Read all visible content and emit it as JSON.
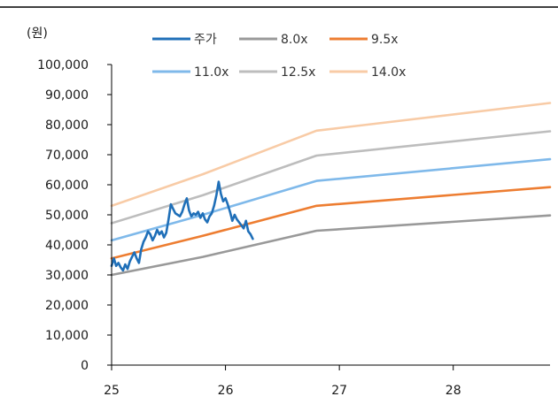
{
  "chart_data": {
    "type": "line",
    "unit_label": "(원)",
    "ylim": [
      0,
      100000
    ],
    "y_ticks": [
      "100,000",
      "90,000",
      "80,000",
      "70,000",
      "60,000",
      "50,000",
      "40,000",
      "30,000",
      "20,000",
      "10,000",
      "0"
    ],
    "y_tick_values": [
      100000,
      90000,
      80000,
      70000,
      60000,
      50000,
      40000,
      30000,
      20000,
      10000,
      0
    ],
    "xlim": [
      25,
      28.85
    ],
    "x_ticks": [
      "25",
      "26",
      "27",
      "28"
    ],
    "x_tick_values": [
      25,
      26,
      27,
      28
    ],
    "grid": false,
    "legend": "top",
    "series": [
      {
        "name": "주가",
        "color": "#1f6fb8",
        "width": 2.6,
        "x": [
          25.0,
          25.02,
          25.04,
          25.06,
          25.08,
          25.1,
          25.12,
          25.14,
          25.16,
          25.18,
          25.2,
          25.22,
          25.24,
          25.26,
          25.28,
          25.3,
          25.32,
          25.34,
          25.36,
          25.38,
          25.4,
          25.42,
          25.44,
          25.46,
          25.48,
          25.5,
          25.52,
          25.54,
          25.56,
          25.58,
          25.6,
          25.62,
          25.64,
          25.66,
          25.68,
          25.7,
          25.72,
          25.74,
          25.76,
          25.78,
          25.8,
          25.82,
          25.84,
          25.86,
          25.88,
          25.9,
          25.92,
          25.94,
          25.96,
          25.98,
          26.0,
          26.02,
          26.04,
          26.06,
          26.08,
          26.1,
          26.12,
          26.14,
          26.16,
          26.18,
          26.2,
          26.22,
          26.24
        ],
        "values": [
          33000,
          35500,
          33000,
          34000,
          32500,
          31500,
          33500,
          32000,
          34500,
          36000,
          37500,
          35500,
          34000,
          38500,
          41000,
          42500,
          44500,
          43500,
          41500,
          43000,
          45000,
          43500,
          44500,
          42500,
          44000,
          48500,
          53500,
          52000,
          50500,
          50000,
          49500,
          51000,
          53500,
          55500,
          51500,
          49500,
          50500,
          50000,
          51000,
          49000,
          50500,
          48500,
          47500,
          49500,
          50500,
          53000,
          56500,
          61000,
          57000,
          54500,
          55500,
          53500,
          51000,
          48000,
          50000,
          48500,
          47500,
          46500,
          45500,
          48000,
          44500,
          43500,
          42000
        ]
      },
      {
        "name": "8.0x",
        "color": "#999999",
        "width": 2.6,
        "x": [
          25.0,
          25.8,
          26.8,
          28.85
        ],
        "values": [
          30000,
          36000,
          44700,
          49800
        ]
      },
      {
        "name": "9.5x",
        "color": "#ed7d31",
        "width": 2.6,
        "x": [
          25.0,
          25.8,
          26.8,
          28.85
        ],
        "values": [
          35500,
          43000,
          53000,
          59200
        ]
      },
      {
        "name": "11.0x",
        "color": "#7fb9ea",
        "width": 2.6,
        "x": [
          25.0,
          25.8,
          26.8,
          28.85
        ],
        "values": [
          41500,
          50000,
          61300,
          68500
        ]
      },
      {
        "name": "12.5x",
        "color": "#bdbdbd",
        "width": 2.6,
        "x": [
          25.0,
          25.8,
          26.8,
          28.85
        ],
        "values": [
          47200,
          56500,
          69700,
          77800
        ]
      },
      {
        "name": "14.0x",
        "color": "#f8cba6",
        "width": 2.6,
        "x": [
          25.0,
          25.8,
          26.8,
          28.85
        ],
        "values": [
          53000,
          63500,
          78000,
          87200
        ]
      }
    ]
  }
}
